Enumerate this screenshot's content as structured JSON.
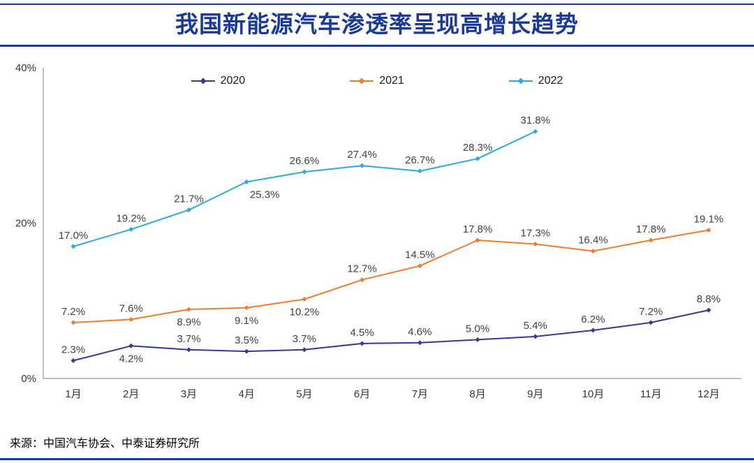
{
  "page": {
    "title": "我国新能源汽车渗透率呈现高增长趋势",
    "source": "来源：中国汽车协会、中泰证券研究所"
  },
  "colors": {
    "title": "#1B3A96",
    "rule": "#1B3A96",
    "axis": "#808080",
    "tick_label": "#333333",
    "data_label": "#404040",
    "series_2020": "#333C8E",
    "series_2021": "#ED7D31",
    "series_2022": "#2EA8DF"
  },
  "chart_data": {
    "type": "line",
    "title": "我国新能源汽车渗透率呈现高增长趋势",
    "categories": [
      "1月",
      "2月",
      "3月",
      "4月",
      "5月",
      "6月",
      "7月",
      "8月",
      "9月",
      "10月",
      "11月",
      "12月"
    ],
    "series": [
      {
        "name": "2020",
        "color": "#333C8E",
        "values": [
          2.3,
          4.2,
          3.7,
          3.5,
          3.7,
          4.5,
          4.6,
          5.0,
          5.4,
          6.2,
          7.2,
          8.8
        ],
        "labels_below": [
          1
        ]
      },
      {
        "name": "2021",
        "color": "#ED7D31",
        "values": [
          7.2,
          7.6,
          8.9,
          9.1,
          10.2,
          12.7,
          14.5,
          17.8,
          17.3,
          16.4,
          17.8,
          19.1
        ],
        "labels_below": [
          2,
          3,
          4
        ]
      },
      {
        "name": "2022",
        "color": "#2EA8DF",
        "values": [
          17.0,
          19.2,
          21.7,
          25.3,
          26.6,
          27.4,
          26.7,
          28.3,
          31.8
        ],
        "labels_below": [
          3
        ],
        "label_dx": {
          "3": 26
        }
      }
    ],
    "ylim": [
      0,
      40
    ],
    "yticks": [
      {
        "label": "0%",
        "value": 0
      },
      {
        "label": "20%",
        "value": 20
      },
      {
        "label": "40%",
        "value": 40
      }
    ],
    "grid": false,
    "legend_position": "top-center",
    "xlabel": "",
    "ylabel": ""
  }
}
